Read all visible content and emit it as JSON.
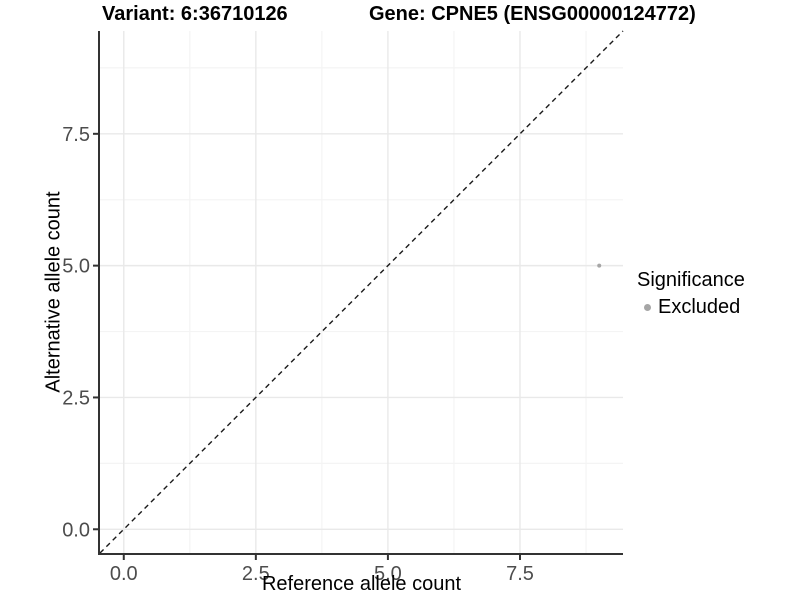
{
  "titles": {
    "variant": "Variant: 6:36710126",
    "gene": "Gene: CPNE5 (ENSG00000124772)"
  },
  "chart_data": {
    "type": "scatter",
    "xlabel": "Reference allele count",
    "ylabel": "Alternative allele count",
    "xlim": [
      -0.45,
      9.45
    ],
    "ylim": [
      -0.45,
      9.45
    ],
    "x_major_ticks": [
      0.0,
      2.5,
      5.0,
      7.5
    ],
    "x_minor_ticks": [
      1.25,
      3.75,
      6.25,
      8.75
    ],
    "y_major_ticks": [
      0.0,
      2.5,
      5.0,
      7.5
    ],
    "y_minor_ticks": [
      1.25,
      3.75,
      6.25,
      8.75
    ],
    "tick_decimals": 1,
    "grid": "major+minor",
    "points": [
      {
        "x": 9,
        "y": 5,
        "series": "Excluded"
      }
    ],
    "abline": {
      "slope": 1,
      "intercept": 0,
      "style": "dashed",
      "color": "#1a1a1a"
    },
    "legend": {
      "title": "Significance",
      "position": "right",
      "entries": [
        {
          "label": "Excluded",
          "color": "#A6A6A6"
        }
      ]
    },
    "colors": {
      "grid_major": "#E9E9E9",
      "grid_minor": "#F4F4F4",
      "axis_line": "#333333",
      "tick_mark": "#333333",
      "tick_text": "#4D4D4D",
      "point": "#A6A6A6",
      "background": "#FFFFFF"
    }
  }
}
